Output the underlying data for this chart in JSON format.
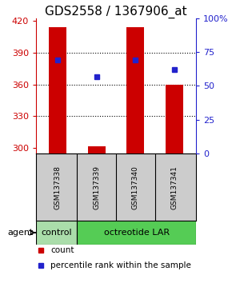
{
  "title": "GDS2558 / 1367906_at",
  "samples": [
    "GSM137338",
    "GSM137339",
    "GSM137340",
    "GSM137341"
  ],
  "counts": [
    414,
    302,
    414,
    360
  ],
  "percentiles": [
    69,
    57,
    69,
    62
  ],
  "ylim_left": [
    295,
    422
  ],
  "ylim_right": [
    0,
    100
  ],
  "yticks_left": [
    300,
    330,
    360,
    390,
    420
  ],
  "yticks_right": [
    0,
    25,
    50,
    75,
    100
  ],
  "ytick_right_labels": [
    "0",
    "25",
    "50",
    "75",
    "100%"
  ],
  "bar_color": "#cc0000",
  "dot_color": "#2222cc",
  "bar_width": 0.45,
  "groups": [
    "control",
    "octreotide LAR"
  ],
  "group_colors": [
    "#aaddaa",
    "#55cc55"
  ],
  "title_fontsize": 11,
  "background_color": "#ffffff",
  "left_tick_color": "#cc0000",
  "right_tick_color": "#2222cc",
  "label_bg": "#cccccc",
  "grid_color": "black"
}
